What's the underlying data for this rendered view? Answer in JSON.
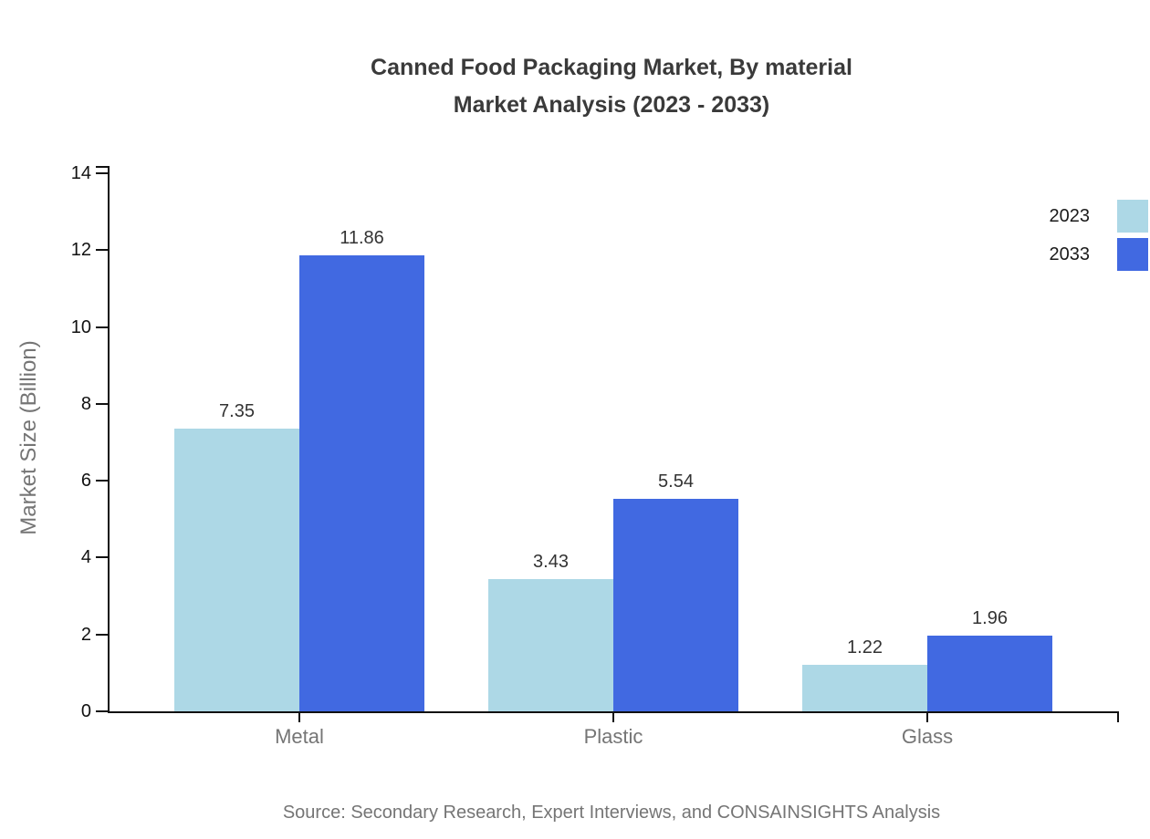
{
  "title": {
    "line1": "Canned Food Packaging Market, By material",
    "line2": "Market Analysis (2023 - 2033)"
  },
  "source": "Source: Secondary Research, Expert Interviews, and CONSAINSIGHTS Analysis",
  "chart_data": {
    "type": "bar",
    "categories": [
      "Metal",
      "Plastic",
      "Glass"
    ],
    "series": [
      {
        "name": "2023",
        "color": "#ADD8E6",
        "values": [
          7.35,
          3.43,
          1.22
        ]
      },
      {
        "name": "2033",
        "color": "#4169E1",
        "values": [
          11.86,
          5.54,
          1.96
        ]
      }
    ],
    "title": "Canned Food Packaging Market, By material Market Analysis (2023 - 2033)",
    "xlabel": "",
    "ylabel": "Market Size (Billion)",
    "ylim": [
      0,
      14
    ],
    "ytick_step": 2,
    "value_labels": true,
    "grid": false,
    "legend_position": "top-right"
  }
}
